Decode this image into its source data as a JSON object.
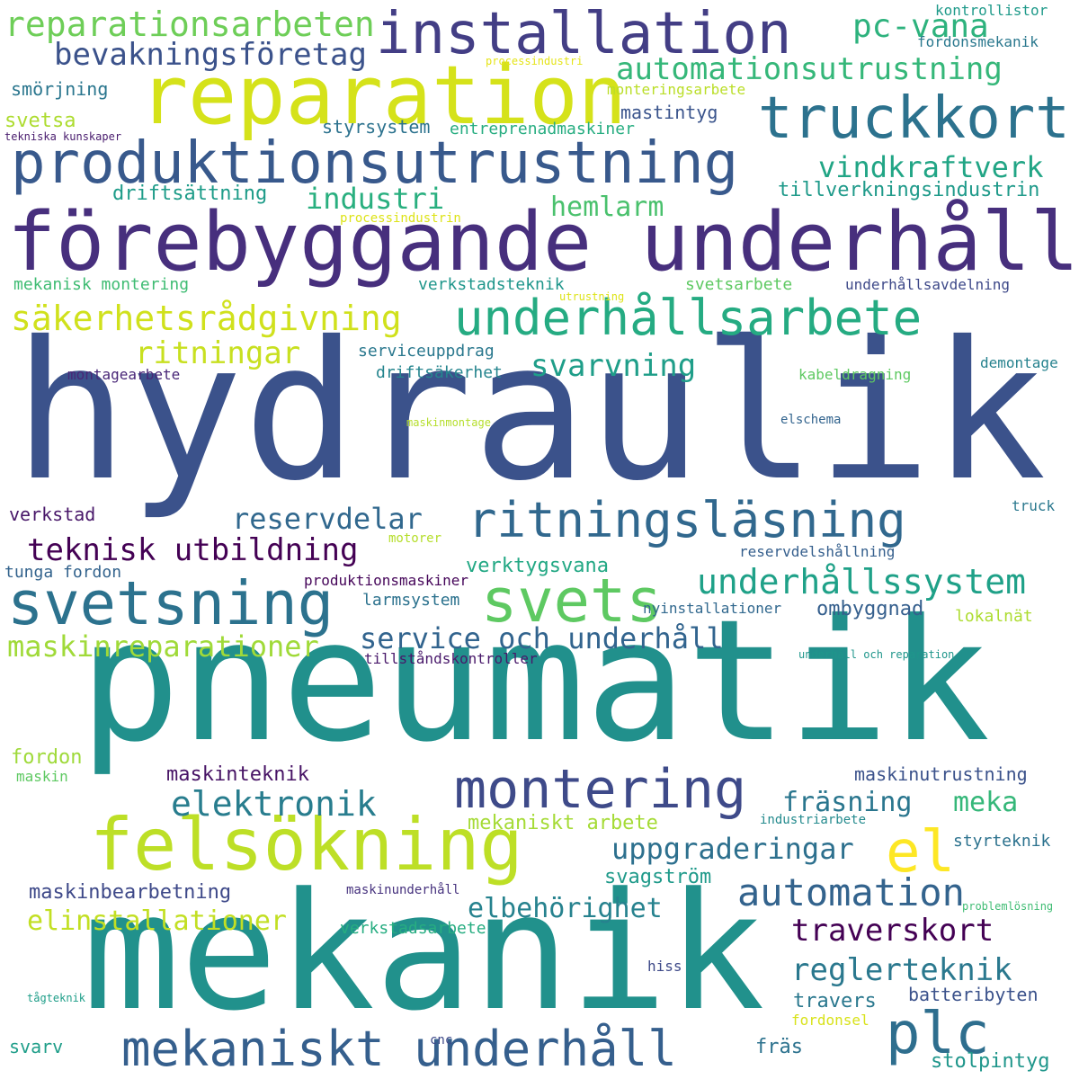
{
  "words": [
    {
      "text": "hydraulik",
      "color": "#3b528b"
    },
    {
      "text": "pneumatik",
      "color": "#21908c"
    },
    {
      "text": "mekanik",
      "color": "#21918c"
    },
    {
      "text": "förebyggande underhåll",
      "color": "#472f7d"
    },
    {
      "text": "reparation",
      "color": "#d5e21a"
    },
    {
      "text": "installation",
      "color": "#433e85"
    },
    {
      "text": "produktionsutrustning",
      "color": "#38598c"
    },
    {
      "text": "truckkort",
      "color": "#2c728e"
    },
    {
      "text": "underhållsarbete",
      "color": "#25ab82"
    },
    {
      "text": "ritningsläsning",
      "color": "#31688e"
    },
    {
      "text": "svetsning",
      "color": "#2c728e"
    },
    {
      "text": "svets",
      "color": "#5ec962"
    },
    {
      "text": "felsökning",
      "color": "#bddf26"
    },
    {
      "text": "montering",
      "color": "#3e4a89"
    },
    {
      "text": "mekaniskt underhåll",
      "color": "#355f8d"
    },
    {
      "text": "plc",
      "color": "#2e6e8e"
    },
    {
      "text": "el",
      "color": "#fde725"
    },
    {
      "text": "automation",
      "color": "#33638d"
    },
    {
      "text": "elektronik",
      "color": "#287d8e"
    },
    {
      "text": "underhållssystem",
      "color": "#1fa188"
    },
    {
      "text": "säkerhetsrådgivning",
      "color": "#d0e11c"
    },
    {
      "text": "reparationsarbeten",
      "color": "#6ece58"
    },
    {
      "text": "bevakningsföretag",
      "color": "#3b528b"
    },
    {
      "text": "pc-vana",
      "color": "#2db27d"
    },
    {
      "text": "automationsutrustning",
      "color": "#35b779"
    },
    {
      "text": "vindkraftverk",
      "color": "#21a585"
    },
    {
      "text": "industri",
      "color": "#29af7f"
    },
    {
      "text": "hemlarm",
      "color": "#4ac16d"
    },
    {
      "text": "ritningar",
      "color": "#c8e020"
    },
    {
      "text": "svarvning",
      "color": "#1f9e89"
    },
    {
      "text": "reservdelar",
      "color": "#31688e"
    },
    {
      "text": "teknisk utbildning",
      "color": "#440154"
    },
    {
      "text": "service och underhåll",
      "color": "#32648e"
    },
    {
      "text": "maskinreparationer",
      "color": "#a0da39"
    },
    {
      "text": "uppgraderingar",
      "color": "#2d708e"
    },
    {
      "text": "traverskort",
      "color": "#440154"
    },
    {
      "text": "reglerteknik",
      "color": "#2a788e"
    },
    {
      "text": "elinstallationer",
      "color": "#c2df23"
    },
    {
      "text": "elbehörighet",
      "color": "#26828e"
    },
    {
      "text": "fräsning",
      "color": "#2a768e"
    },
    {
      "text": "meka",
      "color": "#35b779"
    },
    {
      "text": "maskinteknik",
      "color": "#471365"
    },
    {
      "text": "maskinbearbetning",
      "color": "#3e4989"
    },
    {
      "text": "mekaniskt arbete",
      "color": "#a5db36"
    },
    {
      "text": "svagström",
      "color": "#1f9a8a"
    },
    {
      "text": "ombyggnad",
      "color": "#355f8d"
    },
    {
      "text": "verktygsvana",
      "color": "#22a884"
    },
    {
      "text": "lokalnät",
      "color": "#addc30"
    },
    {
      "text": "mastintyg",
      "color": "#3a548c"
    },
    {
      "text": "styrsystem",
      "color": "#2c728e"
    },
    {
      "text": "entreprenadmaskiner",
      "color": "#27ad81"
    },
    {
      "text": "tillverkningsindustrin",
      "color": "#1f9a8a"
    },
    {
      "text": "driftsättning",
      "color": "#1e9c89"
    },
    {
      "text": "smörjning",
      "color": "#2a768e"
    },
    {
      "text": "svetsa",
      "color": "#addc30"
    },
    {
      "text": "tekniska kunskaper",
      "color": "#481b6d"
    },
    {
      "text": "kontrollistor",
      "color": "#1f9a8a"
    },
    {
      "text": "fordonsmekanik",
      "color": "#2a788e"
    },
    {
      "text": "processindustri",
      "color": "#e5e419"
    },
    {
      "text": "monteringsarbete",
      "color": "#bade28"
    },
    {
      "text": "processindustrin",
      "color": "#dde318"
    },
    {
      "text": "mekanisk montering",
      "color": "#3fbc73"
    },
    {
      "text": "verkstadsteknik",
      "color": "#1f968b"
    },
    {
      "text": "svetsarbete",
      "color": "#5ec962"
    },
    {
      "text": "utrustning",
      "color": "#dde318"
    },
    {
      "text": "underhållsavdelning",
      "color": "#3e4989"
    },
    {
      "text": "serviceuppdrag",
      "color": "#2a788e"
    },
    {
      "text": "driftsäkerhet",
      "color": "#25858e"
    },
    {
      "text": "montagearbete",
      "color": "#482677"
    },
    {
      "text": "kabeldragning",
      "color": "#5ec962"
    },
    {
      "text": "demontage",
      "color": "#26828e"
    },
    {
      "text": "maskinmontage",
      "color": "#b5de2b"
    },
    {
      "text": "elschema",
      "color": "#32648e"
    },
    {
      "text": "verkstad",
      "color": "#481769"
    },
    {
      "text": "truck",
      "color": "#2a788e"
    },
    {
      "text": "motorer",
      "color": "#b5de2b"
    },
    {
      "text": "reservdelshållning",
      "color": "#355f8d"
    },
    {
      "text": "tunga fordon",
      "color": "#33638d"
    },
    {
      "text": "produktionsmaskiner",
      "color": "#450559"
    },
    {
      "text": "larmsystem",
      "color": "#2c728e"
    },
    {
      "text": "nyinstallationer",
      "color": "#31688e"
    },
    {
      "text": "tillståndskontroller",
      "color": "#48186a"
    },
    {
      "text": "underhåll och reparation",
      "color": "#1f968b"
    },
    {
      "text": "fordon",
      "color": "#9fda3a"
    },
    {
      "text": "maskin",
      "color": "#5ec962"
    },
    {
      "text": "maskinutrustning",
      "color": "#3b528b"
    },
    {
      "text": "industriarbete",
      "color": "#238a8d"
    },
    {
      "text": "styrteknik",
      "color": "#2c728e"
    },
    {
      "text": "maskinunderhåll",
      "color": "#46327e"
    },
    {
      "text": "problemlösning",
      "color": "#3fbc73"
    },
    {
      "text": "verkstadsarbete",
      "color": "#27ad81"
    },
    {
      "text": "tågteknik",
      "color": "#1f9e89"
    },
    {
      "text": "hiss",
      "color": "#3e4a89"
    },
    {
      "text": "batteribyten",
      "color": "#3b528b"
    },
    {
      "text": "travers",
      "color": "#2a788e"
    },
    {
      "text": "fordonsel",
      "color": "#d8e219"
    },
    {
      "text": "svarv",
      "color": "#1f9e89"
    },
    {
      "text": "cnc",
      "color": "#3e4989"
    },
    {
      "text": "fräs",
      "color": "#2c728e"
    },
    {
      "text": "stolpintyg",
      "color": "#1f968b"
    }
  ]
}
